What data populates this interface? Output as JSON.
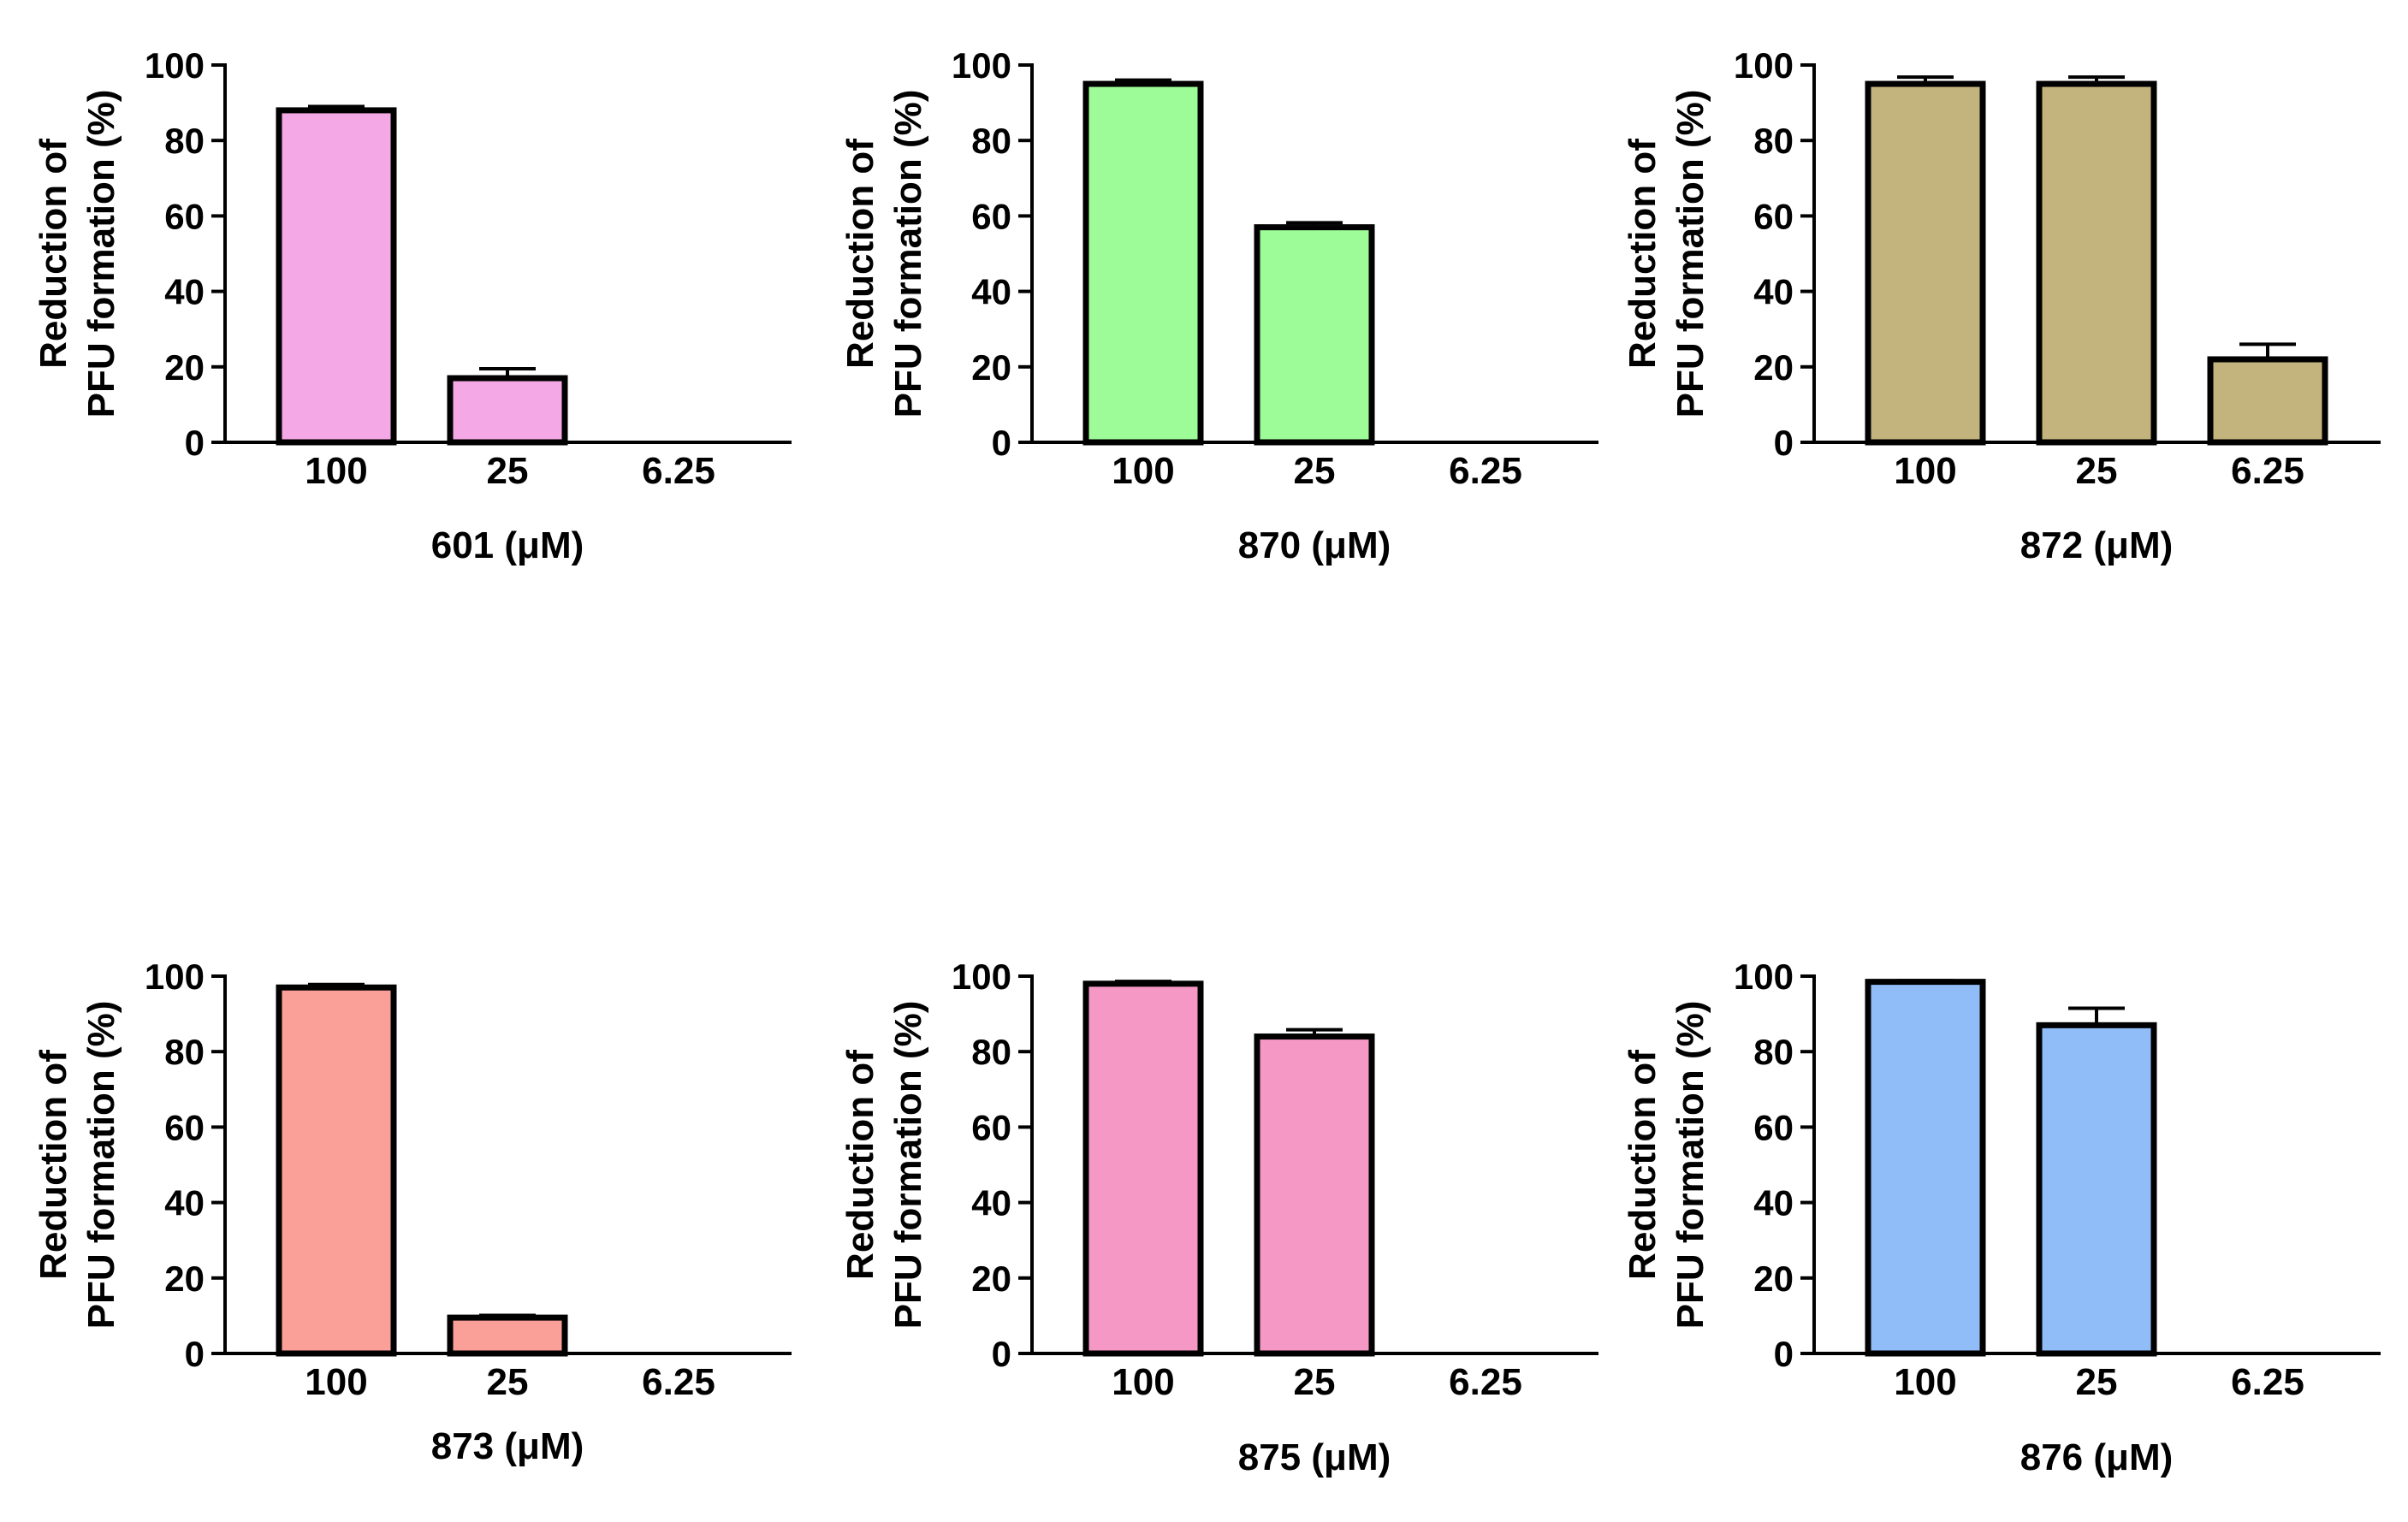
{
  "figure_title": "",
  "chart_data": [
    {
      "type": "bar",
      "title": "",
      "compound": "601",
      "xlabel": "601 (μM)",
      "ylabel_lines": [
        "Reduction of",
        "PFU formation (%)"
      ],
      "categories": [
        "100",
        "25",
        "6.25"
      ],
      "values": [
        88,
        17,
        0
      ],
      "errors": [
        1,
        2.5,
        0
      ],
      "ylim": [
        0,
        100
      ],
      "yticks": [
        0,
        20,
        40,
        60,
        80,
        100
      ],
      "bar_color": "#f4a8e6",
      "grid": false
    },
    {
      "type": "bar",
      "title": "",
      "compound": "870",
      "xlabel": "870 (μM)",
      "ylabel_lines": [
        "Reduction of",
        "PFU formation (%)"
      ],
      "categories": [
        "100",
        "25",
        "6.25"
      ],
      "values": [
        95,
        57,
        0
      ],
      "errors": [
        1,
        1.2,
        0
      ],
      "ylim": [
        0,
        100
      ],
      "yticks": [
        0,
        20,
        40,
        60,
        80,
        100
      ],
      "bar_color": "#9efc98",
      "grid": false
    },
    {
      "type": "bar",
      "title": "",
      "compound": "872",
      "xlabel": "872 (μM)",
      "ylabel_lines": [
        "Reduction of",
        "PFU formation (%)"
      ],
      "categories": [
        "100",
        "25",
        "6.25"
      ],
      "values": [
        95,
        95,
        22
      ],
      "errors": [
        1.8,
        1.8,
        4
      ],
      "ylim": [
        0,
        100
      ],
      "yticks": [
        0,
        20,
        40,
        60,
        80,
        100
      ],
      "bar_color": "#c3b37c",
      "grid": false
    },
    {
      "type": "bar",
      "title": "",
      "compound": "873",
      "xlabel": "873 (μM)",
      "ylabel_lines": [
        "Reduction of",
        "PFU formation (%)"
      ],
      "categories": [
        "100",
        "25",
        "6.25"
      ],
      "values": [
        97,
        9.5,
        0
      ],
      "errors": [
        0.8,
        0.6,
        0
      ],
      "ylim": [
        0,
        100
      ],
      "yticks": [
        0,
        20,
        40,
        60,
        80,
        100
      ],
      "bar_color": "#fb9f99",
      "grid": false
    },
    {
      "type": "bar",
      "title": "",
      "compound": "875",
      "xlabel": "875 (μM)",
      "ylabel_lines": [
        "Reduction of",
        "PFU formation (%)"
      ],
      "categories": [
        "100",
        "25",
        "6.25"
      ],
      "values": [
        98,
        84,
        0
      ],
      "errors": [
        0.6,
        1.8,
        0
      ],
      "ylim": [
        0,
        100
      ],
      "yticks": [
        0,
        20,
        40,
        60,
        80,
        100
      ],
      "bar_color": "#f598c6",
      "grid": false
    },
    {
      "type": "bar",
      "title": "",
      "compound": "876",
      "xlabel": "876 (μM)",
      "ylabel_lines": [
        "Reduction of",
        "PFU formation (%)"
      ],
      "categories": [
        "100",
        "25",
        "6.25"
      ],
      "values": [
        98.5,
        87,
        0
      ],
      "errors": [
        0.3,
        4.5,
        0
      ],
      "ylim": [
        0,
        100
      ],
      "yticks": [
        0,
        20,
        40,
        60,
        80,
        100
      ],
      "bar_color": "#90bdf7",
      "grid": false
    }
  ]
}
